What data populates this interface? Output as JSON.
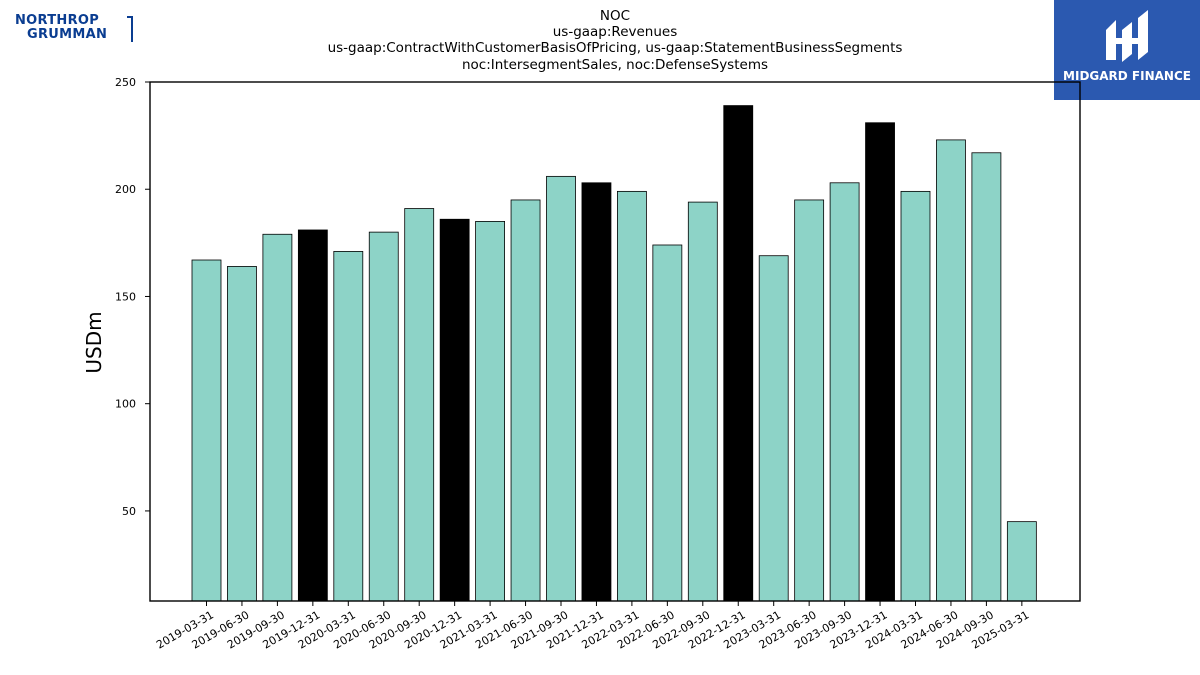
{
  "titles": [
    "NOC",
    "us-gaap:Revenues",
    "us-gaap:ContractWithCustomerBasisOfPricing, us-gaap:StatementBusinessSegments",
    "noc:IntersegmentSales, noc:DefenseSystems"
  ],
  "logos": {
    "left": {
      "line1": "NORTHROP",
      "line2": "GRUMMAN",
      "color": "#0a3d91"
    },
    "right": {
      "name": "MIDGARD FINANCE",
      "bg": "#2b59b0"
    }
  },
  "chart_data": {
    "type": "bar",
    "ylabel": "USDm",
    "xlabel": "",
    "ylim": [
      8,
      250
    ],
    "yticks": [
      50,
      100,
      150,
      200,
      250
    ],
    "grid": false,
    "colors": {
      "default": "#8dd3c7",
      "highlight": "#000000"
    },
    "categories": [
      "2019-03-31",
      "2019-06-30",
      "2019-09-30",
      "2019-12-31",
      "2020-03-31",
      "2020-06-30",
      "2020-09-30",
      "2020-12-31",
      "2021-03-31",
      "2021-06-30",
      "2021-09-30",
      "2021-12-31",
      "2022-03-31",
      "2022-06-30",
      "2022-09-30",
      "2022-12-31",
      "2023-03-31",
      "2023-06-30",
      "2023-09-30",
      "2023-12-31",
      "2024-03-31",
      "2024-06-30",
      "2024-09-30",
      "2025-03-31"
    ],
    "values": [
      167,
      164,
      179,
      181,
      171,
      180,
      191,
      186,
      185,
      195,
      206,
      203,
      199,
      174,
      194,
      239,
      169,
      195,
      203,
      231,
      199,
      223,
      217,
      45
    ],
    "highlighted": [
      false,
      false,
      false,
      true,
      false,
      false,
      false,
      true,
      false,
      false,
      false,
      true,
      false,
      false,
      false,
      true,
      false,
      false,
      false,
      true,
      false,
      false,
      false,
      false
    ]
  }
}
